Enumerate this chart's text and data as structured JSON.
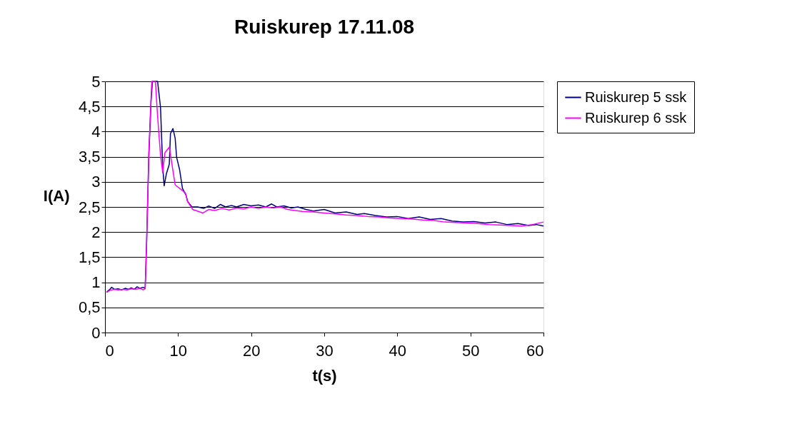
{
  "chart_data": {
    "type": "line",
    "title": "Ruiskurep 17.11.08",
    "xlabel": "t(s)",
    "ylabel": "I(A)",
    "xlim": [
      0,
      60
    ],
    "xticks": [
      0,
      10,
      20,
      30,
      40,
      50,
      60
    ],
    "ylim": [
      0,
      5
    ],
    "yticks": [
      0,
      {
        "value": 0.5,
        "label": "0,5"
      },
      1,
      {
        "value": 1.5,
        "label": "1,5"
      },
      2,
      {
        "value": 2.5,
        "label": "2,5"
      },
      3,
      {
        "value": 3.5,
        "label": "3,5"
      },
      4,
      {
        "value": 4.5,
        "label": "4,5"
      },
      5
    ],
    "grid": "y",
    "legend": "right",
    "marker": "none",
    "line_style": "solid",
    "series": [
      {
        "name": "Ruiskurep 5 ssk",
        "color": "#000080",
        "x": [
          0.2,
          0.6,
          0.9,
          1.3,
          1.8,
          2.3,
          2.8,
          3.2,
          3.6,
          4.0,
          4.4,
          4.8,
          5.2,
          5.5,
          5.7,
          6.0,
          6.3,
          6.5,
          6.8,
          7.2,
          7.6,
          7.9,
          8.1,
          8.4,
          8.8,
          8.96,
          9.3,
          9.6,
          9.8,
          10.2,
          10.6,
          11.1,
          11.3,
          11.9,
          12.7,
          13.5,
          14.2,
          15.0,
          15.8,
          16.5,
          17.3,
          18.0,
          19.0,
          20.0,
          21.0,
          22.0,
          22.8,
          23.5,
          24.5,
          25.5,
          26.4,
          27.5,
          28.5,
          30.0,
          31.5,
          33.0,
          34.5,
          35.5,
          37.0,
          38.5,
          40.0,
          41.5,
          43.0,
          44.5,
          46.0,
          47.5,
          49.0,
          50.5,
          52.0,
          53.5,
          55.0,
          56.5,
          58.0,
          59.0,
          60.0
        ],
        "values": [
          0.8,
          0.85,
          0.9,
          0.86,
          0.87,
          0.85,
          0.88,
          0.86,
          0.89,
          0.86,
          0.91,
          0.88,
          0.9,
          0.88,
          1.8,
          3.5,
          4.6,
          5.0,
          5.0,
          5.0,
          4.48,
          3.3,
          2.92,
          3.16,
          3.35,
          3.96,
          4.06,
          3.87,
          3.49,
          3.25,
          2.87,
          2.73,
          2.61,
          2.5,
          2.5,
          2.47,
          2.52,
          2.47,
          2.55,
          2.5,
          2.53,
          2.5,
          2.55,
          2.52,
          2.54,
          2.5,
          2.56,
          2.5,
          2.52,
          2.48,
          2.5,
          2.45,
          2.42,
          2.45,
          2.38,
          2.4,
          2.35,
          2.37,
          2.33,
          2.3,
          2.31,
          2.27,
          2.3,
          2.25,
          2.27,
          2.22,
          2.2,
          2.21,
          2.18,
          2.2,
          2.15,
          2.17,
          2.13,
          2.15,
          2.12
        ]
      },
      {
        "name": "Ruiskurep 6 ssk",
        "color": "#ff00ff",
        "x": [
          0.2,
          0.7,
          1.2,
          1.8,
          2.4,
          3.0,
          3.6,
          4.2,
          4.8,
          5.2,
          5.5,
          5.7,
          6.0,
          6.4,
          6.9,
          7.2,
          7.6,
          7.9,
          8.2,
          8.8,
          9.6,
          11.0,
          11.3,
          12.0,
          13.4,
          14.2,
          15.0,
          16.0,
          17.0,
          18.0,
          19.0,
          20.0,
          21.0,
          22.0,
          23.0,
          24.0,
          25.0,
          26.0,
          27.0,
          28.5,
          30.0,
          31.5,
          33.0,
          34.5,
          36.0,
          37.5,
          39.0,
          40.5,
          42.0,
          43.5,
          45.0,
          46.5,
          48.0,
          49.5,
          51.0,
          52.5,
          54.0,
          55.5,
          57.0,
          58.5,
          60.0
        ],
        "values": [
          0.8,
          0.84,
          0.86,
          0.85,
          0.86,
          0.85,
          0.87,
          0.86,
          0.88,
          0.85,
          0.87,
          1.8,
          3.6,
          5.0,
          5.0,
          4.3,
          3.53,
          3.18,
          3.58,
          3.69,
          2.94,
          2.78,
          2.61,
          2.45,
          2.38,
          2.45,
          2.43,
          2.47,
          2.44,
          2.48,
          2.46,
          2.5,
          2.47,
          2.5,
          2.48,
          2.5,
          2.45,
          2.43,
          2.41,
          2.4,
          2.38,
          2.36,
          2.34,
          2.33,
          2.31,
          2.3,
          2.28,
          2.27,
          2.26,
          2.24,
          2.23,
          2.2,
          2.19,
          2.18,
          2.17,
          2.15,
          2.14,
          2.13,
          2.12,
          2.15,
          2.2
        ]
      }
    ]
  }
}
